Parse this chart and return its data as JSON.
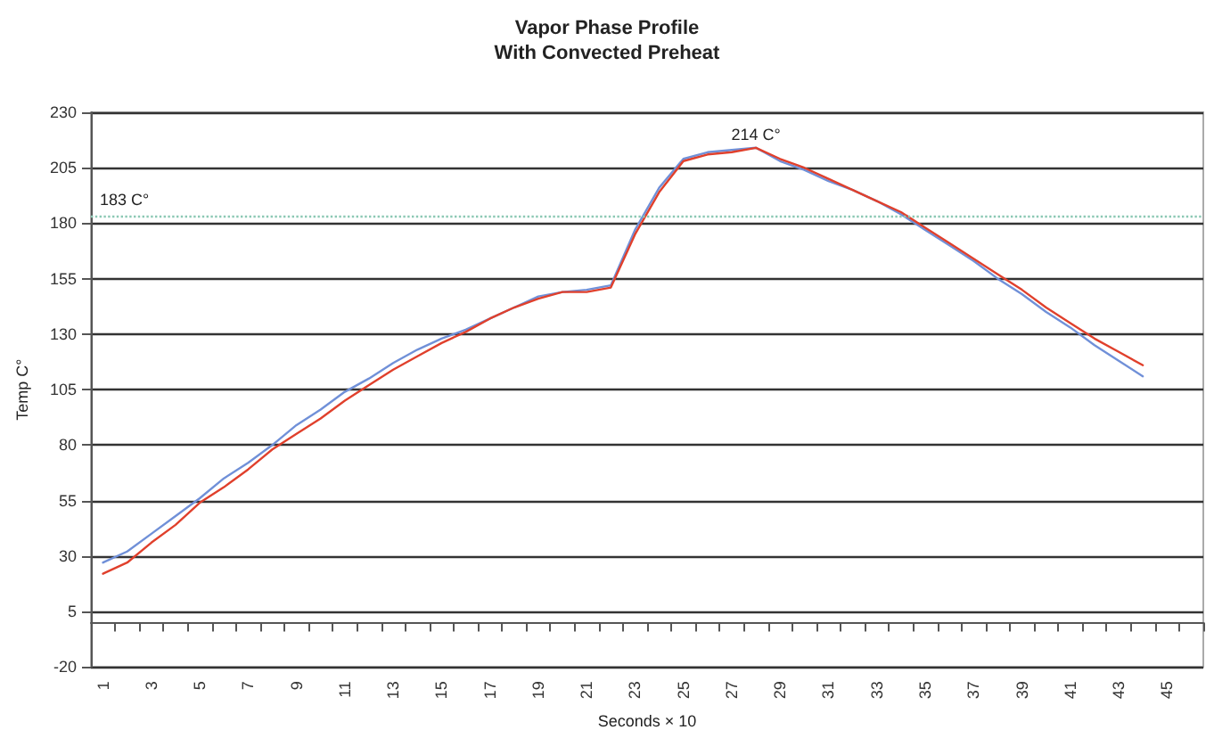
{
  "chart_data": {
    "type": "line",
    "title": "Vapor Phase Profile",
    "subtitle": "With Convected Preheat",
    "xlabel": "Seconds × 10",
    "ylabel": "Temp C°",
    "categories": [
      "1",
      null,
      "3",
      null,
      "5",
      null,
      "7",
      null,
      "9",
      null,
      "11",
      null,
      "13",
      null,
      "15",
      null,
      "17",
      null,
      "19",
      null,
      "21",
      null,
      "23",
      null,
      "25",
      null,
      "27",
      null,
      "29",
      null,
      "31",
      null,
      "33",
      null,
      "35",
      null,
      "37",
      null,
      "39",
      null,
      "41",
      null,
      "43",
      null,
      "45",
      null
    ],
    "series": [
      {
        "color": "#7090d8",
        "values": [
          27,
          32,
          40,
          48,
          56,
          65,
          72,
          80,
          89,
          96,
          104,
          110,
          117,
          123,
          128,
          132,
          137,
          142,
          147,
          149,
          150,
          152,
          177,
          196,
          209,
          212,
          213,
          214,
          208,
          204,
          199,
          195,
          190,
          184,
          177,
          170,
          163,
          155,
          148,
          140,
          133,
          125,
          118,
          111,
          null,
          null
        ]
      },
      {
        "color": "#e0402c",
        "values": [
          22,
          27,
          36,
          44,
          54,
          61,
          69,
          78,
          85,
          92,
          100,
          107,
          114,
          120,
          126,
          131,
          137,
          142,
          146,
          149,
          149,
          151,
          175,
          194,
          208,
          211,
          212,
          214,
          209,
          205,
          200,
          195,
          190,
          185,
          178,
          171,
          164,
          157,
          150,
          142,
          135,
          128,
          122,
          116,
          null,
          null
        ]
      }
    ],
    "ylim": [
      -20,
      230
    ],
    "yticks": [
      -20,
      5,
      30,
      55,
      80,
      105,
      130,
      155,
      180,
      205,
      230
    ],
    "grid": "y",
    "marker": "none",
    "line_style": "solid",
    "ref_lines": [
      {
        "axis": "y",
        "value": 183,
        "label": "183 C°",
        "color": "#8cc8b4",
        "line_style": "dotted"
      }
    ],
    "annotations": [
      "214 C°"
    ]
  }
}
